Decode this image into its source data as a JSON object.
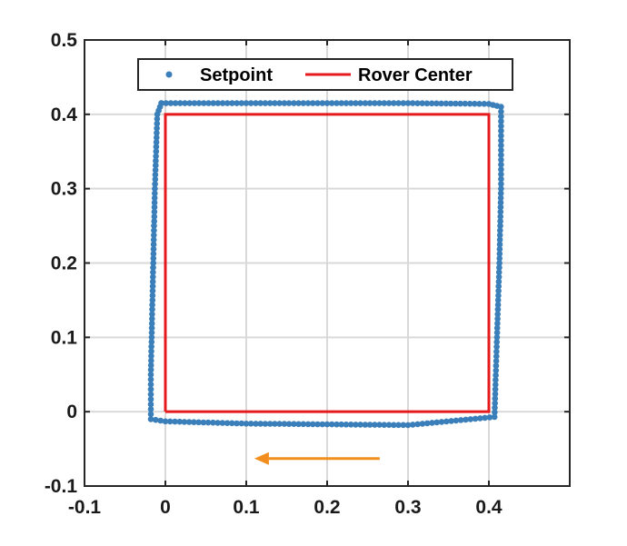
{
  "chart_data": {
    "type": "scatter",
    "title": "",
    "xlabel": "",
    "ylabel": "",
    "xlim": [
      -0.1,
      0.5
    ],
    "ylim": [
      -0.1,
      0.5
    ],
    "x_ticks": [
      -0.1,
      0,
      0.1,
      0.2,
      0.3,
      0.4
    ],
    "x_tick_labels": [
      "-0.1",
      "0",
      "0.1",
      "0.2",
      "0.3",
      "0.4"
    ],
    "y_ticks": [
      -0.1,
      0,
      0.1,
      0.2,
      0.3,
      0.4,
      0.5
    ],
    "y_tick_labels": [
      "-0.1",
      "0",
      "0.1",
      "0.2",
      "0.3",
      "0.4",
      "0.5"
    ],
    "grid": true,
    "legend_position": "top-center",
    "series": [
      {
        "name": "Setpoint",
        "style": "markers",
        "color": "#3a7fba",
        "x": [
          -0.005,
          0.1,
          0.2,
          0.3,
          0.4,
          0.415,
          0.415,
          0.413,
          0.41,
          0.408,
          0.407,
          0.3,
          0.2,
          0.1,
          0.0,
          -0.018,
          -0.018,
          -0.017,
          -0.015,
          -0.013,
          -0.01,
          -0.005
        ],
        "y": [
          0.415,
          0.415,
          0.415,
          0.415,
          0.414,
          0.41,
          0.3,
          0.2,
          0.1,
          0.03,
          -0.007,
          -0.018,
          -0.017,
          -0.016,
          -0.013,
          -0.01,
          0.05,
          0.1,
          0.2,
          0.3,
          0.4,
          0.415
        ]
      },
      {
        "name": "Rover Center",
        "style": "line",
        "color": "#e41a1c",
        "x": [
          0,
          0,
          0.4,
          0.4,
          0
        ],
        "y": [
          0,
          0.4,
          0.4,
          0,
          0
        ]
      }
    ],
    "annotations": [
      {
        "type": "arrow",
        "color": "#f28e1e",
        "from": [
          0.265,
          -0.063
        ],
        "to": [
          0.11,
          -0.063
        ]
      }
    ]
  }
}
